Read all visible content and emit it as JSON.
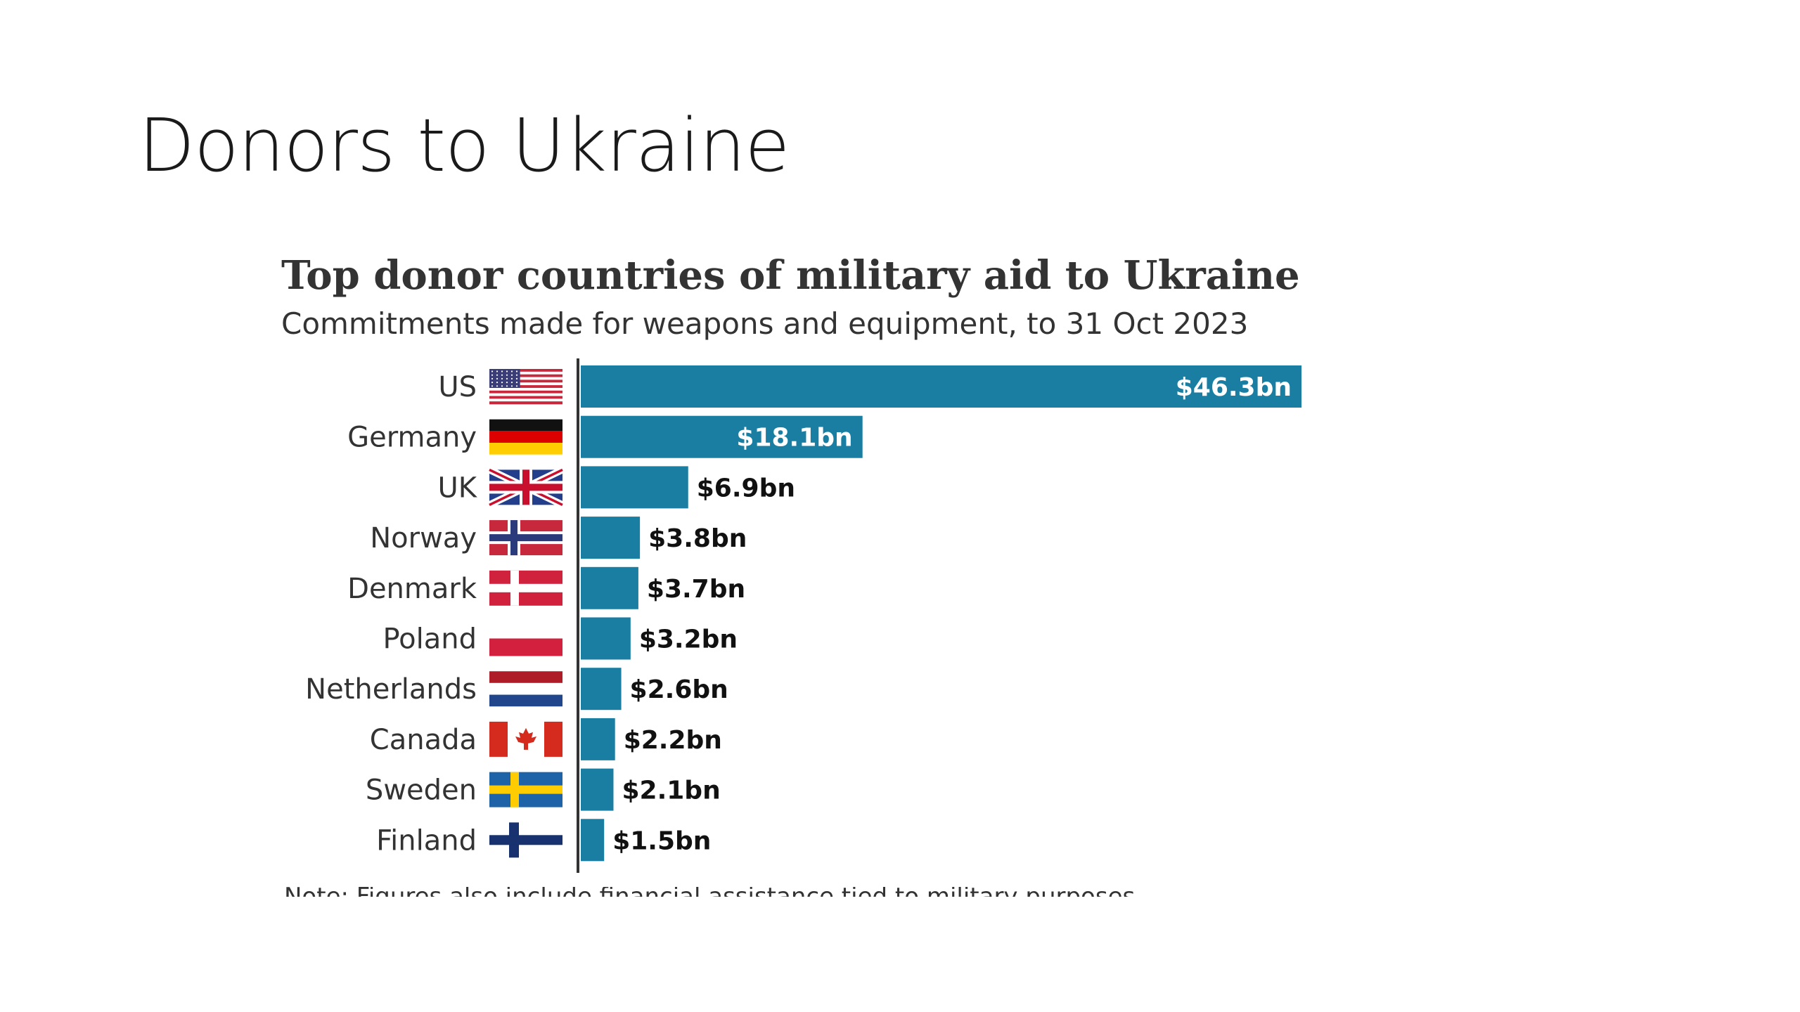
{
  "slide": {
    "title": "Donors to Ukraine"
  },
  "colors": {
    "bar": "#1a7ea3",
    "axis": "#333333",
    "label": "#333333",
    "value_inside": "#ffffff",
    "value_outside": "#111111"
  },
  "chart_data": {
    "type": "bar",
    "orientation": "horizontal",
    "title": "Top donor countries of military aid to Ukraine",
    "subtitle": "Commitments made for weapons and equipment, to 31 Oct 2023",
    "note": "Note: Figures also include financial assistance tied to military purposes",
    "categories": [
      "US",
      "Germany",
      "UK",
      "Norway",
      "Denmark",
      "Poland",
      "Netherlands",
      "Canada",
      "Sweden",
      "Finland"
    ],
    "flags": [
      "us-flag",
      "germany-flag",
      "uk-flag",
      "norway-flag",
      "denmark-flag",
      "poland-flag",
      "netherlands-flag",
      "canada-flag",
      "sweden-flag",
      "finland-flag"
    ],
    "values": [
      46.3,
      18.1,
      6.9,
      3.8,
      3.7,
      3.2,
      2.6,
      2.2,
      2.1,
      1.5
    ],
    "value_labels": [
      "$46.3bn",
      "$18.1bn",
      "$6.9bn",
      "$3.8bn",
      "$3.7bn",
      "$3.2bn",
      "$2.6bn",
      "$2.2bn",
      "$2.1bn",
      "$1.5bn"
    ],
    "unit": "$bn",
    "xlim": [
      0,
      46.3
    ],
    "grid": false,
    "legend": "none"
  }
}
